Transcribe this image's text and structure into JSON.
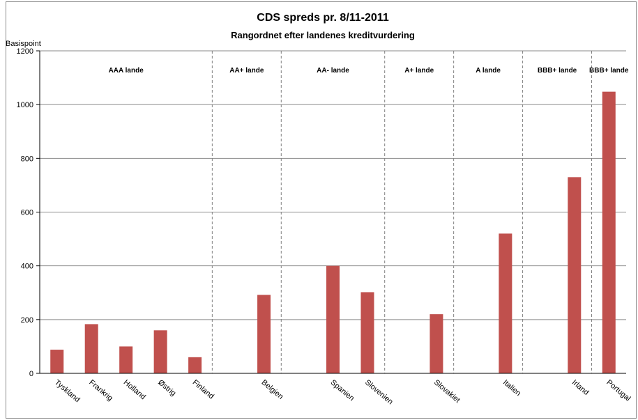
{
  "chart_data": {
    "type": "bar",
    "title": "CDS spreds pr. 8/11-2011",
    "subtitle": "Rangordnet efter landenes kreditvurdering",
    "ylabel": "Basispoint",
    "xlabel": "",
    "ylim": [
      0,
      1200
    ],
    "yticks": [
      0,
      200,
      400,
      600,
      800,
      1000,
      1200
    ],
    "bar_color": "#c0504d",
    "grid": true,
    "slots": 17,
    "categories": [
      "Tyskland",
      "Frankrig",
      "Holland",
      "Østrig",
      "Finland",
      "Belgien",
      "Spanien",
      "Slovenien",
      "Slovakiet",
      "Italien",
      "Irland",
      "Portugal"
    ],
    "slot_index": [
      0,
      1,
      2,
      3,
      4,
      6,
      8,
      9,
      11,
      13,
      15,
      16
    ],
    "values": [
      88,
      183,
      100,
      160,
      60,
      292,
      400,
      302,
      220,
      520,
      730,
      1048
    ],
    "groups": [
      {
        "label": "AAA lande",
        "from": 0,
        "to": 5
      },
      {
        "label": "AA+ lande",
        "from": 5,
        "to": 7
      },
      {
        "label": "AA- lande",
        "from": 7,
        "to": 10
      },
      {
        "label": "A+ lande",
        "from": 10,
        "to": 12
      },
      {
        "label": "A lande",
        "from": 12,
        "to": 14
      },
      {
        "label": "BBB+ lande",
        "from": 14,
        "to": 16
      },
      {
        "label": "BBB+ lande",
        "from": 16,
        "to": 17
      }
    ]
  }
}
